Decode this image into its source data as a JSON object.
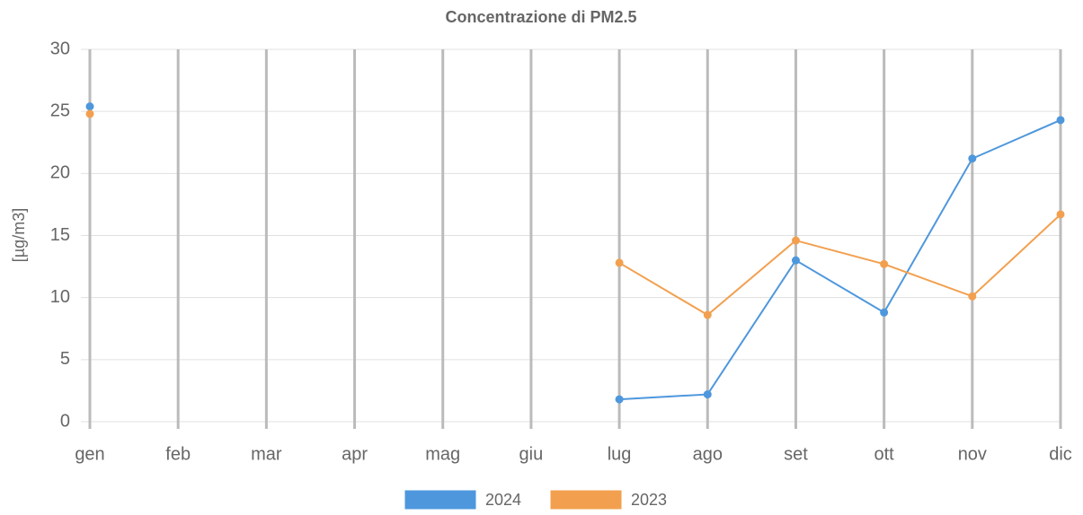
{
  "chart_data": {
    "type": "line",
    "title": "Concentrazione di PM2.5",
    "y_label": "[µg/m3]",
    "categories": [
      "gen",
      "feb",
      "mar",
      "apr",
      "mag",
      "giu",
      "lug",
      "ago",
      "set",
      "ott",
      "nov",
      "dic"
    ],
    "series": [
      {
        "name": "2024",
        "color": "#4e97dd",
        "values": [
          25.4,
          null,
          null,
          null,
          null,
          null,
          1.8,
          2.2,
          13.0,
          8.8,
          21.2,
          24.3
        ]
      },
      {
        "name": "2023",
        "color": "#f2a04f",
        "values": [
          24.8,
          null,
          null,
          null,
          null,
          null,
          12.8,
          8.6,
          14.6,
          12.7,
          10.1,
          16.7
        ]
      }
    ],
    "ylim": [
      0,
      30
    ],
    "yticks": [
      0,
      5,
      10,
      15,
      20,
      25,
      30
    ],
    "grid": true,
    "legend": "bottom"
  }
}
